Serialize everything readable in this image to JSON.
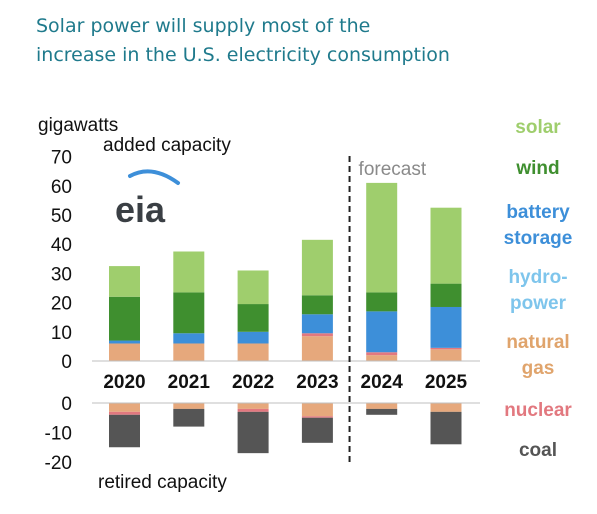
{
  "title_lines": [
    "Solar power will supply most of the",
    "increase in the U.S. electricity consumption"
  ],
  "logo_text": "eia",
  "chart_data": {
    "type": "bar",
    "stacked": true,
    "unit_label": "gigawatts",
    "added_label": "added capacity",
    "retired_label": "retired capacity",
    "forecast_label": "forecast",
    "forecast_from": "2024",
    "categories": [
      "2020",
      "2021",
      "2022",
      "2023",
      "2024",
      "2025"
    ],
    "added_ticks": [
      "70",
      "60",
      "50",
      "40",
      "30",
      "20",
      "10",
      "0"
    ],
    "retired_ticks": [
      "0",
      "-10",
      "-20"
    ],
    "added_ylim": [
      0,
      70
    ],
    "retired_ylim": [
      -20,
      0
    ],
    "added": [
      {
        "name": "natural gas",
        "color": "#e6a87c",
        "values": [
          6,
          6,
          6,
          8.5,
          2,
          4
        ]
      },
      {
        "name": "nuclear",
        "color": "#e2787f",
        "values": [
          0,
          0,
          0,
          1,
          1,
          0.5
        ]
      },
      {
        "name": "battery storage",
        "color": "#3d8fd9",
        "values": [
          1,
          3.5,
          4,
          6.5,
          14,
          14
        ]
      },
      {
        "name": "wind",
        "color": "#3f8f2f",
        "values": [
          15,
          14,
          9.5,
          6.5,
          6.5,
          8
        ]
      },
      {
        "name": "solar",
        "color": "#9fce6d",
        "values": [
          10.5,
          14,
          11.5,
          19,
          37.5,
          26
        ]
      }
    ],
    "retired": [
      {
        "name": "natural gas",
        "color": "#e6a87c",
        "values": [
          -3,
          -2,
          -2,
          -4.5,
          -2,
          -3
        ]
      },
      {
        "name": "nuclear",
        "color": "#e2787f",
        "values": [
          -1,
          0,
          -1,
          -0.5,
          0,
          0
        ]
      },
      {
        "name": "coal",
        "color": "#555555",
        "values": [
          -11,
          -6,
          -14,
          -8.5,
          -2,
          -11
        ]
      }
    ],
    "legend": [
      {
        "lines": [
          "solar"
        ],
        "color": "#9fce6d"
      },
      {
        "lines": [
          "wind"
        ],
        "color": "#3f8f2f"
      },
      {
        "lines": [
          "battery",
          "storage"
        ],
        "color": "#3d8fd9"
      },
      {
        "lines": [
          "hydro-",
          "power"
        ],
        "color": "#7ec5ec"
      },
      {
        "lines": [
          "natural",
          "gas"
        ],
        "color": "#e0a46c"
      },
      {
        "lines": [
          "nuclear"
        ],
        "color": "#e2787f"
      },
      {
        "lines": [
          "coal"
        ],
        "color": "#555555"
      }
    ]
  }
}
